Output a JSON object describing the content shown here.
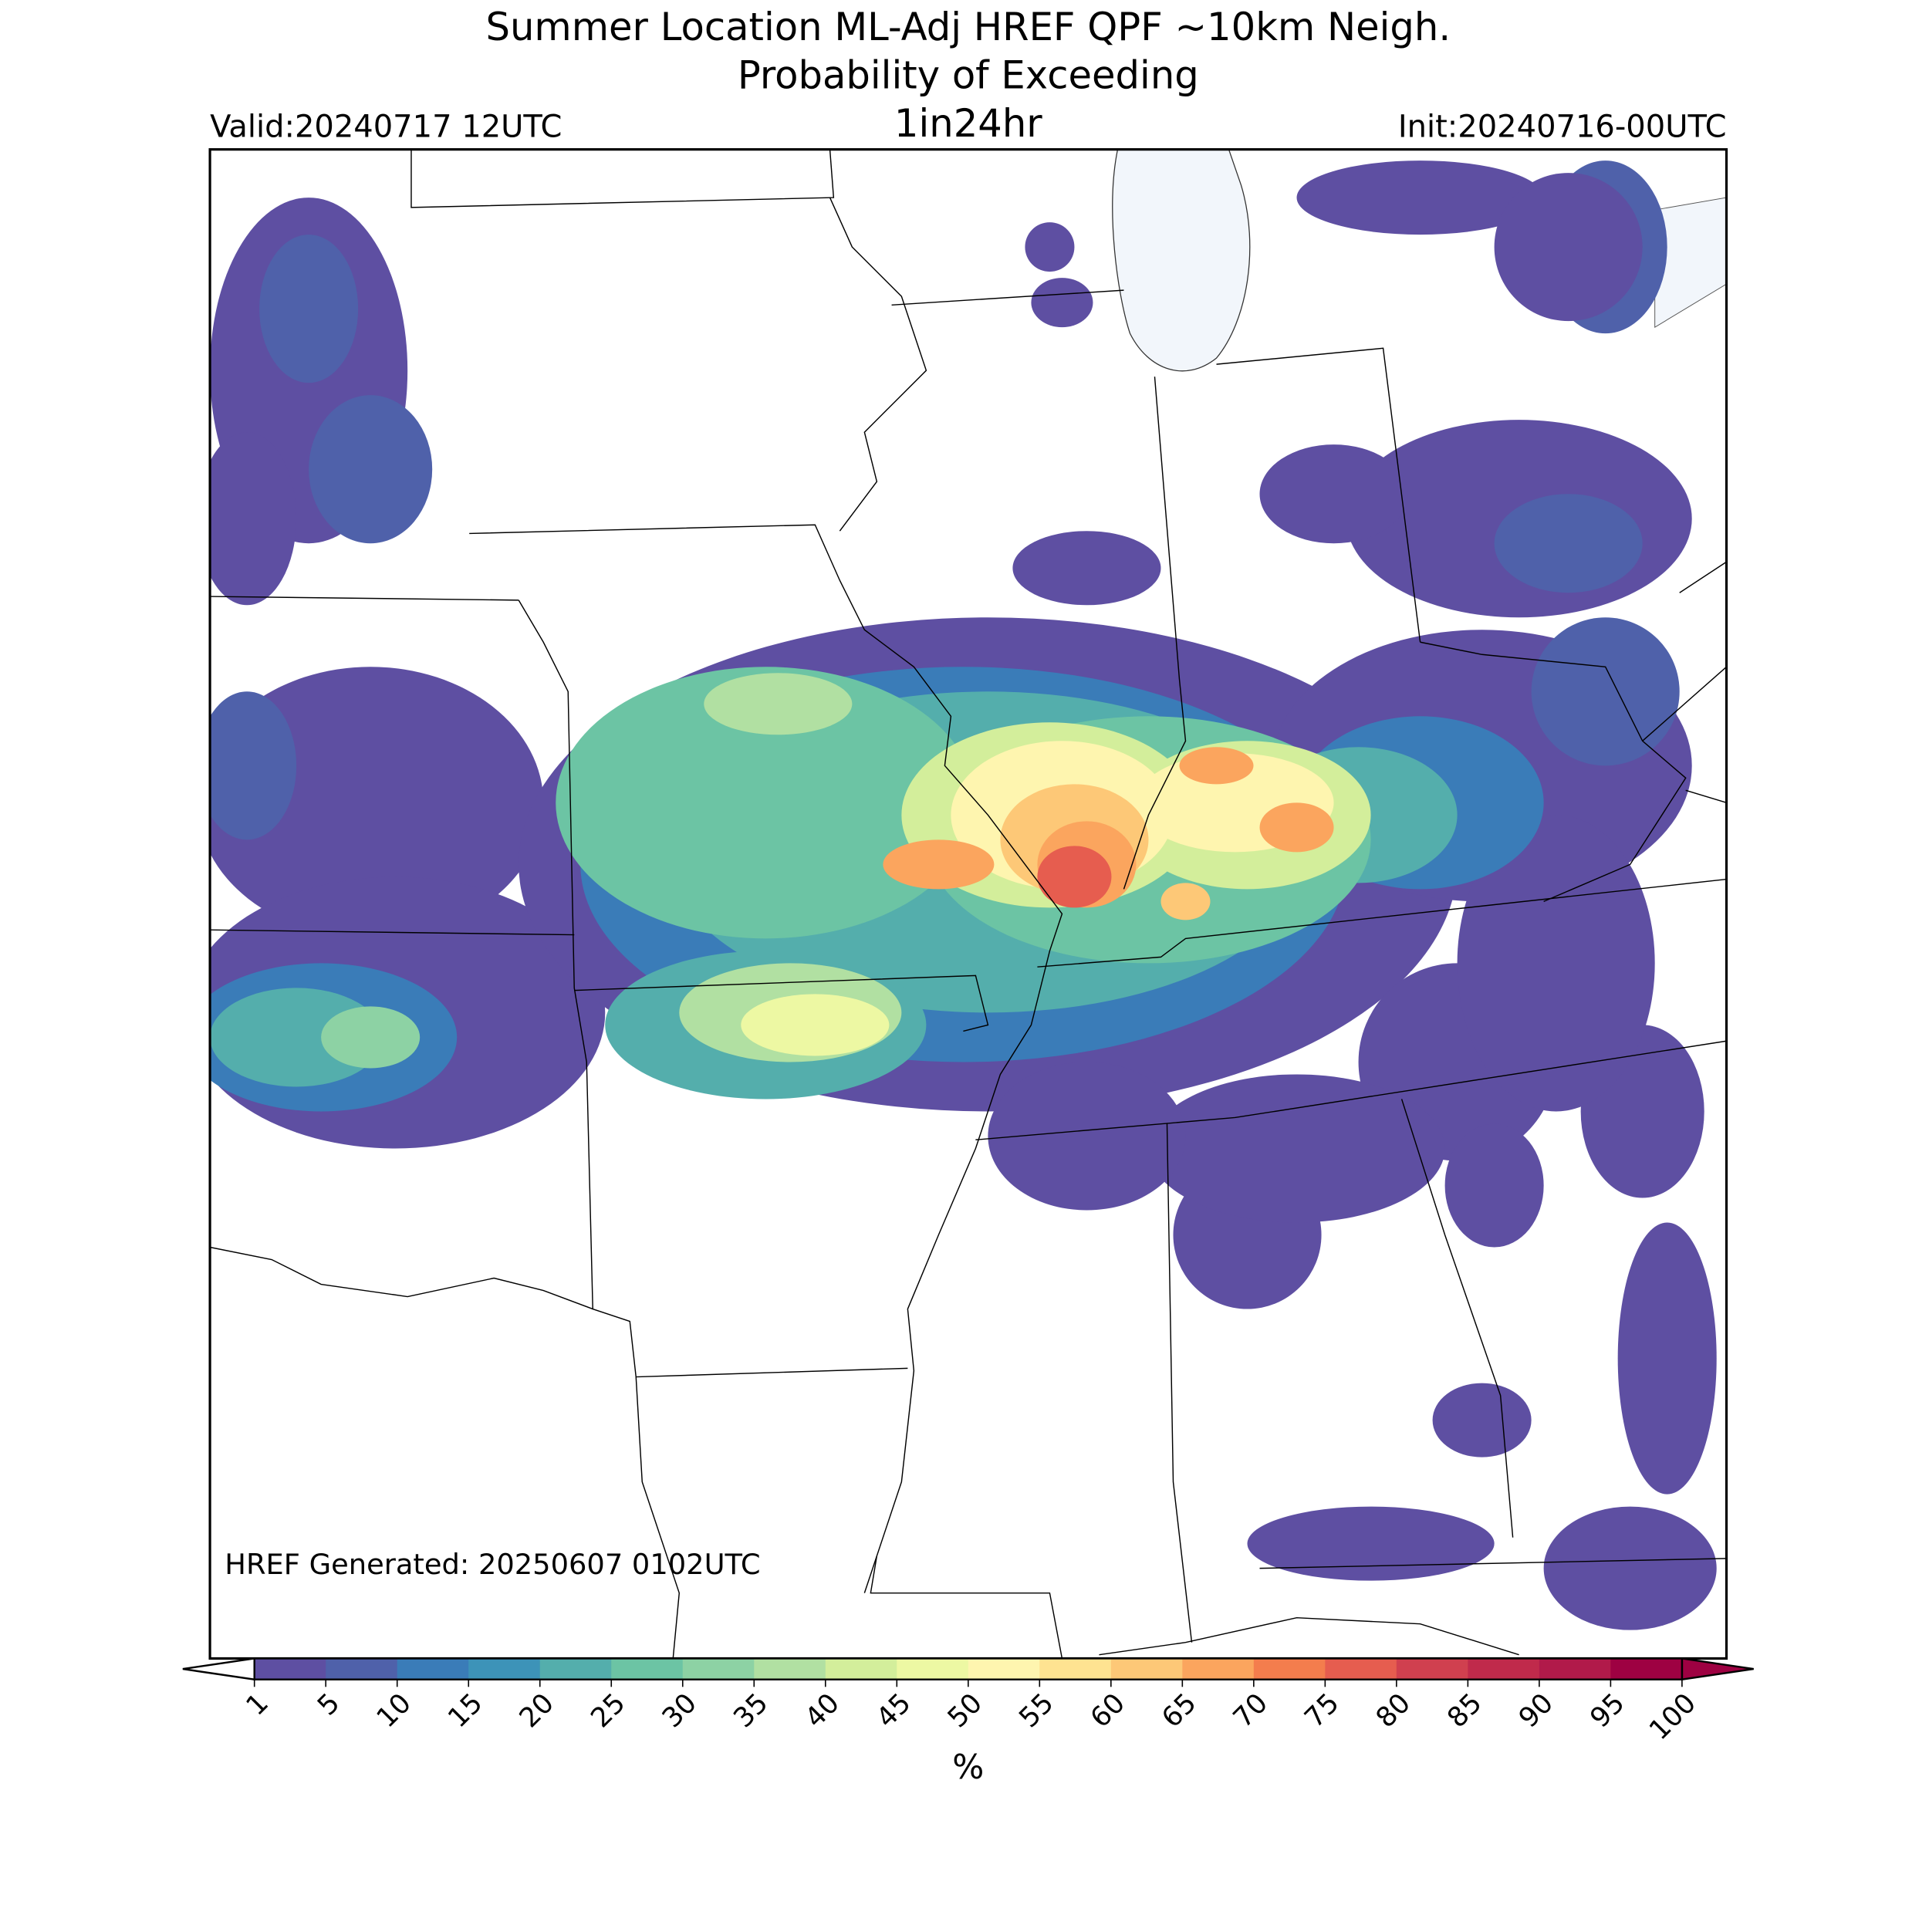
{
  "header": {
    "title": "Summer Location ML-Adj HREF QPF ~10km Neigh.",
    "subtitle": "Probability of Exceeding",
    "threshold": "1in24hr",
    "valid": "Valid:20240717 12UTC",
    "init": "Init:20240716-00UTC"
  },
  "note": "HREF Generated: 20250607 0102UTC",
  "colorbar": {
    "label": "%",
    "ticks": [
      1,
      5,
      10,
      15,
      20,
      25,
      30,
      35,
      40,
      45,
      50,
      55,
      60,
      65,
      70,
      75,
      80,
      85,
      90,
      95,
      100
    ],
    "colors": [
      "#5e4fa2",
      "#4f61aa",
      "#3a7cb8",
      "#3d93b8",
      "#54aeac",
      "#6cc4a4",
      "#8dd2a4",
      "#b1e0a2",
      "#d3ee9b",
      "#edf8a3",
      "#fef5af",
      "#fee391",
      "#fdc877",
      "#fba55e",
      "#f47d4d",
      "#e65d4f",
      "#d0404f",
      "#c02a4b",
      "#b11a4a",
      "#9e0142"
    ],
    "under_color": "#ffffff",
    "over_color": "#9e0142"
  }
}
